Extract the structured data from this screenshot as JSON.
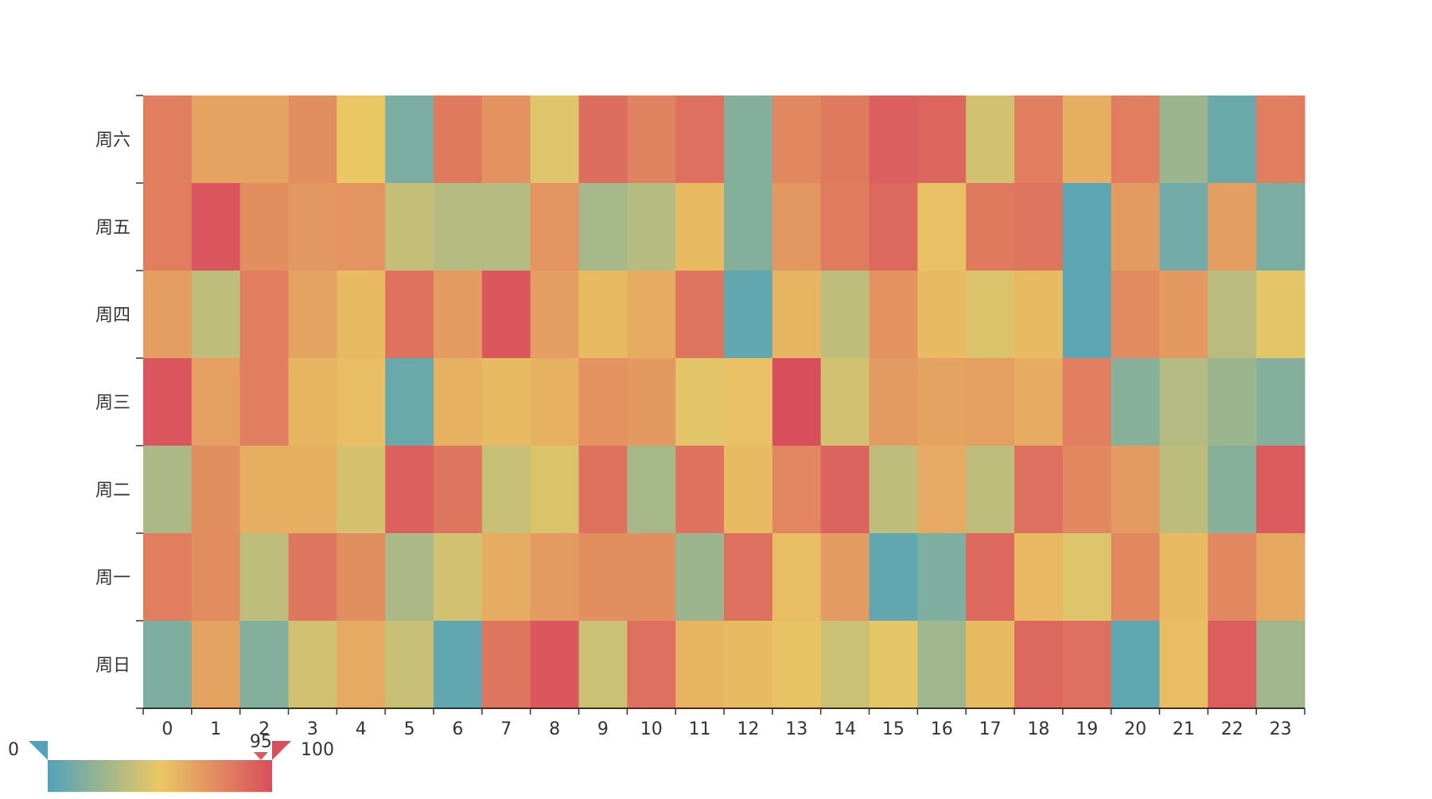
{
  "chart_data": {
    "type": "heatmap",
    "x_categories": [
      "0",
      "1",
      "2",
      "3",
      "4",
      "5",
      "6",
      "7",
      "8",
      "9",
      "10",
      "11",
      "12",
      "13",
      "14",
      "15",
      "16",
      "17",
      "18",
      "19",
      "20",
      "21",
      "22",
      "23"
    ],
    "y_categories": [
      "周六",
      "周五",
      "周四",
      "周三",
      "周二",
      "周一",
      "周日"
    ],
    "values": [
      [
        80,
        65,
        65,
        73,
        50,
        14,
        82,
        72,
        46,
        87,
        78,
        86,
        17,
        76,
        82,
        93,
        90,
        42,
        80,
        60,
        80,
        25,
        8,
        80
      ],
      [
        80,
        97,
        73,
        70,
        71,
        38,
        33,
        33,
        71,
        28,
        33,
        55,
        17,
        70,
        81,
        89,
        53,
        82,
        84,
        4,
        68,
        11,
        67,
        14
      ],
      [
        67,
        36,
        80,
        65,
        55,
        85,
        68,
        96,
        67,
        55,
        61,
        84,
        6,
        58,
        36,
        72,
        55,
        45,
        55,
        4,
        75,
        69,
        34,
        48
      ],
      [
        97,
        66,
        80,
        58,
        54,
        8,
        59,
        55,
        59,
        72,
        69,
        47,
        53,
        100,
        42,
        68,
        65,
        66,
        61,
        80,
        18,
        32,
        25,
        17
      ],
      [
        30,
        73,
        60,
        60,
        43,
        92,
        84,
        39,
        45,
        85,
        28,
        85,
        55,
        77,
        91,
        36,
        62,
        36,
        86,
        76,
        68,
        35,
        18,
        95
      ],
      [
        80,
        74,
        36,
        84,
        73,
        30,
        42,
        61,
        68,
        73,
        73,
        25,
        86,
        54,
        68,
        6,
        15,
        89,
        56,
        46,
        76,
        55,
        76,
        63
      ],
      [
        15,
        65,
        17,
        42,
        62,
        39,
        6,
        84,
        96,
        40,
        86,
        58,
        55,
        52,
        40,
        48,
        26,
        55,
        89,
        86,
        5,
        54,
        94,
        26
      ]
    ],
    "visual_map": {
      "min_label": "0",
      "max_label": "100",
      "min": 0,
      "max": 100,
      "selected_upper": 95,
      "selected_upper_label": "95",
      "color_stops": [
        "#50a3ba",
        "#eac763",
        "#d94e5d"
      ],
      "orientation": "horizontal",
      "position": "bottom-left"
    },
    "grid": false,
    "legend": "none"
  }
}
